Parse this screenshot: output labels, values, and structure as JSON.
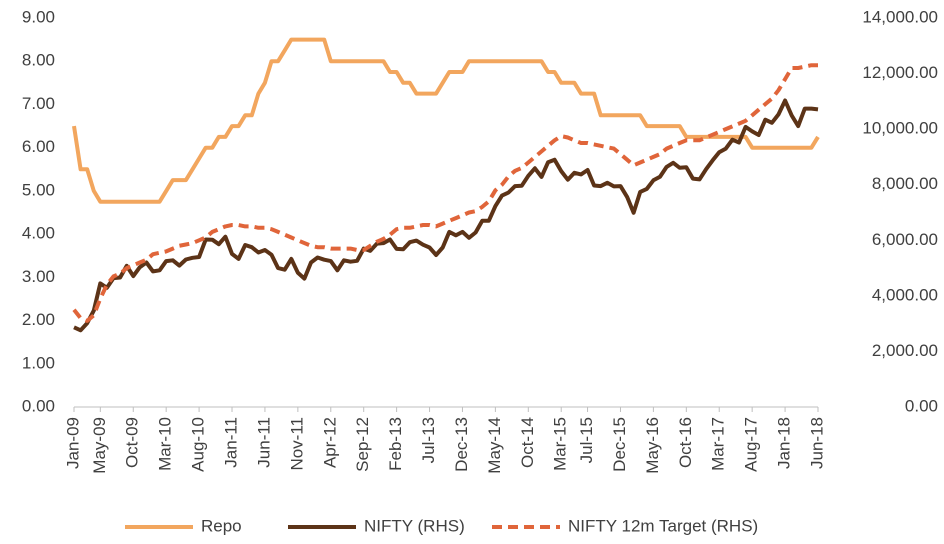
{
  "chart_data": {
    "type": "line",
    "categories": [
      "Jan-09",
      null,
      null,
      null,
      "May-09",
      null,
      null,
      null,
      null,
      "Oct-09",
      null,
      null,
      null,
      null,
      "Mar-10",
      null,
      null,
      null,
      null,
      "Aug-10",
      null,
      null,
      null,
      null,
      "Jan-11",
      null,
      null,
      null,
      null,
      "Jun-11",
      null,
      null,
      null,
      null,
      "Nov-11",
      null,
      null,
      null,
      null,
      "Apr-12",
      null,
      null,
      null,
      null,
      "Sep-12",
      null,
      null,
      null,
      null,
      "Feb-13",
      null,
      null,
      null,
      null,
      "Jul-13",
      null,
      null,
      null,
      null,
      "Dec-13",
      null,
      null,
      null,
      null,
      "May-14",
      null,
      null,
      null,
      null,
      "Oct-14",
      null,
      null,
      null,
      null,
      "Mar-15",
      null,
      null,
      null,
      "Jul-15",
      null,
      null,
      null,
      null,
      "Dec-15",
      null,
      null,
      null,
      null,
      "May-16",
      null,
      null,
      null,
      null,
      "Oct-16",
      null,
      null,
      null,
      null,
      "Mar-17",
      null,
      null,
      null,
      null,
      "Aug-17",
      null,
      null,
      null,
      null,
      "Jan-18",
      null,
      null,
      null,
      null,
      "Jun-18"
    ],
    "series": [
      {
        "name": "Repo",
        "color": "#f2a65e",
        "dash": false,
        "axis": "y",
        "values": [
          6.5,
          5.5,
          5.5,
          5.0,
          4.75,
          4.75,
          4.75,
          4.75,
          4.75,
          4.75,
          4.75,
          4.75,
          4.75,
          4.75,
          5.0,
          5.25,
          5.25,
          5.25,
          5.5,
          5.75,
          6.0,
          6.0,
          6.25,
          6.25,
          6.5,
          6.5,
          6.75,
          6.75,
          7.25,
          7.5,
          8.0,
          8.0,
          8.25,
          8.5,
          8.5,
          8.5,
          8.5,
          8.5,
          8.5,
          8.0,
          8.0,
          8.0,
          8.0,
          8.0,
          8.0,
          8.0,
          8.0,
          8.0,
          7.75,
          7.75,
          7.5,
          7.5,
          7.25,
          7.25,
          7.25,
          7.25,
          7.5,
          7.75,
          7.75,
          7.75,
          8.0,
          8.0,
          8.0,
          8.0,
          8.0,
          8.0,
          8.0,
          8.0,
          8.0,
          8.0,
          8.0,
          8.0,
          7.75,
          7.75,
          7.5,
          7.5,
          7.5,
          7.25,
          7.25,
          7.25,
          6.75,
          6.75,
          6.75,
          6.75,
          6.75,
          6.75,
          6.75,
          6.5,
          6.5,
          6.5,
          6.5,
          6.5,
          6.5,
          6.25,
          6.25,
          6.25,
          6.25,
          6.25,
          6.25,
          6.25,
          6.25,
          6.25,
          6.25,
          6.0,
          6.0,
          6.0,
          6.0,
          6.0,
          6.0,
          6.0,
          6.0,
          6.0,
          6.0,
          6.25
        ]
      },
      {
        "name": "NIFTY (RHS)",
        "color": "#5c3317",
        "dash": false,
        "axis": "y2",
        "values": [
          2870,
          2760,
          3020,
          3470,
          4450,
          4290,
          4640,
          4660,
          5080,
          4710,
          5030,
          5200,
          4880,
          4920,
          5250,
          5280,
          5090,
          5310,
          5370,
          5400,
          6030,
          6020,
          5860,
          6130,
          5510,
          5330,
          5830,
          5750,
          5560,
          5650,
          5480,
          5000,
          4940,
          5330,
          4830,
          4620,
          5200,
          5380,
          5300,
          5250,
          4920,
          5280,
          5230,
          5260,
          5700,
          5620,
          5880,
          5900,
          6030,
          5690,
          5680,
          5930,
          5990,
          5840,
          5740,
          5470,
          5740,
          6300,
          6180,
          6300,
          6090,
          6280,
          6700,
          6700,
          7230,
          7610,
          7720,
          7950,
          7960,
          8320,
          8590,
          8280,
          8810,
          8900,
          8490,
          8180,
          8430,
          8370,
          8530,
          7970,
          7950,
          8070,
          7940,
          7950,
          7560,
          6990,
          7740,
          7850,
          8160,
          8290,
          8640,
          8790,
          8610,
          8630,
          8220,
          8190,
          8560,
          8880,
          9170,
          9300,
          9620,
          9520,
          10080,
          9920,
          9790,
          10340,
          10230,
          10530,
          11030,
          10490,
          10110,
          10740,
          10740,
          10710
        ]
      },
      {
        "name": "NIFTY 12m Target (RHS)",
        "color": "#e0653a",
        "dash": true,
        "axis": "y2",
        "values": [
          3500,
          3200,
          3100,
          3300,
          3900,
          4400,
          4700,
          4800,
          5000,
          5100,
          5200,
          5300,
          5500,
          5550,
          5600,
          5700,
          5800,
          5850,
          5900,
          6000,
          6100,
          6300,
          6400,
          6500,
          6550,
          6550,
          6500,
          6500,
          6450,
          6450,
          6400,
          6300,
          6200,
          6100,
          6000,
          5900,
          5800,
          5750,
          5750,
          5700,
          5700,
          5700,
          5700,
          5650,
          5650,
          5800,
          5950,
          6050,
          6200,
          6400,
          6450,
          6450,
          6500,
          6550,
          6550,
          6500,
          6600,
          6700,
          6800,
          6900,
          7000,
          7050,
          7200,
          7400,
          7800,
          8000,
          8300,
          8500,
          8600,
          8800,
          9000,
          9200,
          9400,
          9600,
          9750,
          9700,
          9600,
          9500,
          9500,
          9450,
          9400,
          9350,
          9300,
          9100,
          8900,
          8700,
          8800,
          8900,
          9000,
          9100,
          9300,
          9400,
          9500,
          9600,
          9600,
          9600,
          9700,
          9800,
          9900,
          10000,
          10100,
          10200,
          10300,
          10500,
          10700,
          10900,
          11100,
          11400,
          11800,
          12200,
          12200,
          12250,
          12300,
          12300
        ]
      }
    ],
    "ylim": [
      0,
      9
    ],
    "yticks": [
      {
        "value": 0,
        "label": "0.00"
      },
      {
        "value": 1,
        "label": "1.00"
      },
      {
        "value": 2,
        "label": "2.00"
      },
      {
        "value": 3,
        "label": "3.00"
      },
      {
        "value": 4,
        "label": "4.00"
      },
      {
        "value": 5,
        "label": "5.00"
      },
      {
        "value": 6,
        "label": "6.00"
      },
      {
        "value": 7,
        "label": "7.00"
      },
      {
        "value": 8,
        "label": "8.00"
      },
      {
        "value": 9,
        "label": "9.00"
      }
    ],
    "y2lim": [
      0,
      14000
    ],
    "y2ticks": [
      {
        "value": 0,
        "label": "0.00"
      },
      {
        "value": 2000,
        "label": "2,000.00"
      },
      {
        "value": 4000,
        "label": "4,000.00"
      },
      {
        "value": 6000,
        "label": "6,000.00"
      },
      {
        "value": 8000,
        "label": "8,000.00"
      },
      {
        "value": 10000,
        "label": "10,000.00"
      },
      {
        "value": 12000,
        "label": "12,000.00"
      },
      {
        "value": 14000,
        "label": "14,000.00"
      }
    ],
    "grid": false,
    "legend": "bottom"
  }
}
